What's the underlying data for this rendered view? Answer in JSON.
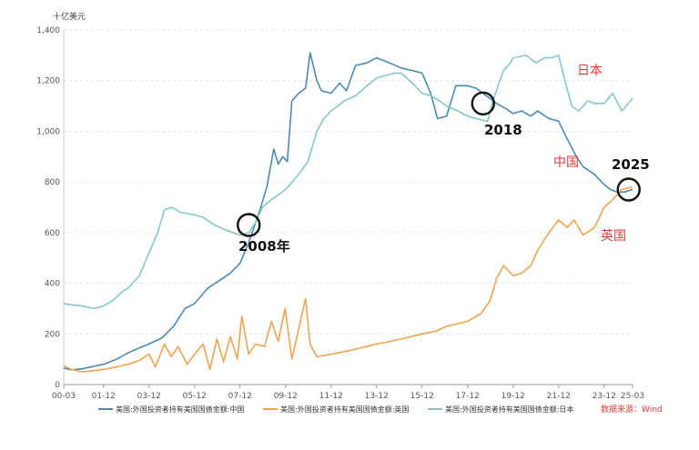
{
  "chart_data": {
    "type": "line",
    "unit_label": "十亿美元",
    "y_ticks": [
      "0",
      "200",
      "400",
      "600",
      "800",
      "1,000",
      "1,200",
      "1,400"
    ],
    "ylim": [
      0,
      1400
    ],
    "x_ticks": [
      "00-03",
      "01-12",
      "03-12",
      "05-12",
      "07-12",
      "09-12",
      "11-12",
      "13-12",
      "15-12",
      "17-12",
      "19-12",
      "21-12",
      "23-12",
      "25-03"
    ],
    "x_tick_years": [
      2000.17,
      2001.92,
      2003.92,
      2005.92,
      2007.92,
      2009.92,
      2011.92,
      2013.92,
      2015.92,
      2017.92,
      2019.92,
      2021.92,
      2023.92,
      2025.17
    ],
    "xlim": [
      2000.17,
      2025.17
    ],
    "grid": true,
    "legend_position": "bottom",
    "series": [
      {
        "name": "美国:外国投资者持有美国国债金额:中国",
        "color": "#4a8ab5",
        "points": [
          [
            2000.17,
            65
          ],
          [
            2000.5,
            58
          ],
          [
            2001.0,
            62
          ],
          [
            2001.5,
            72
          ],
          [
            2001.92,
            80
          ],
          [
            2002.5,
            100
          ],
          [
            2003.0,
            125
          ],
          [
            2003.5,
            145
          ],
          [
            2003.92,
            160
          ],
          [
            2004.5,
            185
          ],
          [
            2005.0,
            230
          ],
          [
            2005.5,
            300
          ],
          [
            2005.92,
            320
          ],
          [
            2006.5,
            380
          ],
          [
            2007.0,
            410
          ],
          [
            2007.5,
            440
          ],
          [
            2007.92,
            480
          ],
          [
            2008.3,
            560
          ],
          [
            2008.8,
            690
          ],
          [
            2009.1,
            780
          ],
          [
            2009.4,
            930
          ],
          [
            2009.6,
            870
          ],
          [
            2009.8,
            900
          ],
          [
            2010.0,
            880
          ],
          [
            2010.2,
            1120
          ],
          [
            2010.5,
            1150
          ],
          [
            2010.8,
            1170
          ],
          [
            2011.0,
            1310
          ],
          [
            2011.3,
            1200
          ],
          [
            2011.5,
            1160
          ],
          [
            2011.92,
            1150
          ],
          [
            2012.3,
            1190
          ],
          [
            2012.6,
            1160
          ],
          [
            2013.0,
            1260
          ],
          [
            2013.5,
            1270
          ],
          [
            2013.92,
            1290
          ],
          [
            2014.5,
            1270
          ],
          [
            2015.0,
            1250
          ],
          [
            2015.5,
            1240
          ],
          [
            2015.92,
            1230
          ],
          [
            2016.3,
            1150
          ],
          [
            2016.6,
            1050
          ],
          [
            2017.0,
            1060
          ],
          [
            2017.4,
            1180
          ],
          [
            2017.92,
            1180
          ],
          [
            2018.3,
            1170
          ],
          [
            2018.6,
            1150
          ],
          [
            2018.9,
            1130
          ],
          [
            2019.2,
            1110
          ],
          [
            2019.6,
            1090
          ],
          [
            2019.92,
            1070
          ],
          [
            2020.3,
            1080
          ],
          [
            2020.7,
            1060
          ],
          [
            2021.0,
            1080
          ],
          [
            2021.5,
            1050
          ],
          [
            2021.92,
            1040
          ],
          [
            2022.3,
            970
          ],
          [
            2022.7,
            900
          ],
          [
            2023.0,
            860
          ],
          [
            2023.5,
            830
          ],
          [
            2023.92,
            790
          ],
          [
            2024.2,
            770
          ],
          [
            2024.5,
            760
          ],
          [
            2024.8,
            760
          ],
          [
            2025.17,
            770
          ]
        ]
      },
      {
        "name": "美国:外国投资者持有美国国债金额:英国",
        "color": "#f5a24a",
        "points": [
          [
            2000.17,
            75
          ],
          [
            2000.5,
            60
          ],
          [
            2001.0,
            50
          ],
          [
            2001.5,
            55
          ],
          [
            2001.92,
            60
          ],
          [
            2002.5,
            70
          ],
          [
            2003.0,
            80
          ],
          [
            2003.5,
            95
          ],
          [
            2003.92,
            120
          ],
          [
            2004.2,
            70
          ],
          [
            2004.6,
            160
          ],
          [
            2004.9,
            110
          ],
          [
            2005.2,
            150
          ],
          [
            2005.6,
            80
          ],
          [
            2005.92,
            120
          ],
          [
            2006.3,
            160
          ],
          [
            2006.6,
            60
          ],
          [
            2006.9,
            180
          ],
          [
            2007.2,
            90
          ],
          [
            2007.5,
            190
          ],
          [
            2007.8,
            100
          ],
          [
            2008.0,
            270
          ],
          [
            2008.3,
            120
          ],
          [
            2008.6,
            160
          ],
          [
            2009.0,
            150
          ],
          [
            2009.3,
            250
          ],
          [
            2009.6,
            170
          ],
          [
            2009.9,
            300
          ],
          [
            2010.2,
            100
          ],
          [
            2010.5,
            220
          ],
          [
            2010.8,
            340
          ],
          [
            2011.0,
            160
          ],
          [
            2011.3,
            110
          ],
          [
            2011.92,
            120
          ],
          [
            2012.5,
            130
          ],
          [
            2013.0,
            140
          ],
          [
            2013.92,
            160
          ],
          [
            2014.5,
            170
          ],
          [
            2015.0,
            180
          ],
          [
            2015.92,
            200
          ],
          [
            2016.5,
            210
          ],
          [
            2017.0,
            230
          ],
          [
            2017.92,
            250
          ],
          [
            2018.5,
            280
          ],
          [
            2018.9,
            330
          ],
          [
            2019.2,
            420
          ],
          [
            2019.5,
            470
          ],
          [
            2019.92,
            430
          ],
          [
            2020.3,
            440
          ],
          [
            2020.7,
            470
          ],
          [
            2021.0,
            530
          ],
          [
            2021.5,
            600
          ],
          [
            2021.92,
            650
          ],
          [
            2022.3,
            620
          ],
          [
            2022.6,
            650
          ],
          [
            2023.0,
            590
          ],
          [
            2023.5,
            620
          ],
          [
            2023.92,
            700
          ],
          [
            2024.3,
            730
          ],
          [
            2024.7,
            770
          ],
          [
            2025.17,
            780
          ]
        ]
      },
      {
        "name": "美国:外国投资者持有美国国债金额:日本",
        "color": "#7fc9cc",
        "points": [
          [
            2000.17,
            320
          ],
          [
            2000.5,
            315
          ],
          [
            2001.0,
            310
          ],
          [
            2001.5,
            300
          ],
          [
            2001.92,
            310
          ],
          [
            2002.3,
            330
          ],
          [
            2002.8,
            370
          ],
          [
            2003.0,
            380
          ],
          [
            2003.5,
            430
          ],
          [
            2003.92,
            520
          ],
          [
            2004.3,
            600
          ],
          [
            2004.6,
            690
          ],
          [
            2004.92,
            700
          ],
          [
            2005.3,
            680
          ],
          [
            2005.92,
            670
          ],
          [
            2006.3,
            660
          ],
          [
            2006.8,
            630
          ],
          [
            2007.3,
            610
          ],
          [
            2007.92,
            590
          ],
          [
            2008.3,
            600
          ],
          [
            2008.6,
            640
          ],
          [
            2008.9,
            700
          ],
          [
            2009.3,
            730
          ],
          [
            2009.92,
            770
          ],
          [
            2010.5,
            830
          ],
          [
            2010.9,
            880
          ],
          [
            2011.3,
            1000
          ],
          [
            2011.6,
            1050
          ],
          [
            2011.92,
            1080
          ],
          [
            2012.5,
            1120
          ],
          [
            2013.0,
            1140
          ],
          [
            2013.5,
            1180
          ],
          [
            2013.92,
            1210
          ],
          [
            2014.3,
            1220
          ],
          [
            2014.7,
            1230
          ],
          [
            2015.0,
            1230
          ],
          [
            2015.5,
            1190
          ],
          [
            2015.92,
            1150
          ],
          [
            2016.3,
            1140
          ],
          [
            2016.7,
            1120
          ],
          [
            2017.0,
            1100
          ],
          [
            2017.5,
            1080
          ],
          [
            2017.92,
            1060
          ],
          [
            2018.3,
            1050
          ],
          [
            2018.8,
            1040
          ],
          [
            2019.0,
            1110
          ],
          [
            2019.3,
            1190
          ],
          [
            2019.5,
            1240
          ],
          [
            2019.8,
            1270
          ],
          [
            2019.92,
            1290
          ],
          [
            2020.5,
            1300
          ],
          [
            2020.92,
            1270
          ],
          [
            2021.3,
            1290
          ],
          [
            2021.6,
            1290
          ],
          [
            2021.92,
            1300
          ],
          [
            2022.2,
            1200
          ],
          [
            2022.5,
            1100
          ],
          [
            2022.8,
            1080
          ],
          [
            2023.2,
            1120
          ],
          [
            2023.5,
            1110
          ],
          [
            2023.92,
            1110
          ],
          [
            2024.3,
            1150
          ],
          [
            2024.7,
            1080
          ],
          [
            2025.17,
            1130
          ]
        ]
      }
    ],
    "annotations": {
      "label_2008": "2008年",
      "label_2018": "2018",
      "label_2025": "2025",
      "label_japan": "日本",
      "label_china": "中国",
      "label_uk": "英国"
    },
    "circles": [
      {
        "x": 2008.3,
        "y": 630
      },
      {
        "x": 2018.6,
        "y": 1110
      },
      {
        "x": 2025.0,
        "y": 770
      }
    ],
    "source": "数据来源：Wind"
  }
}
